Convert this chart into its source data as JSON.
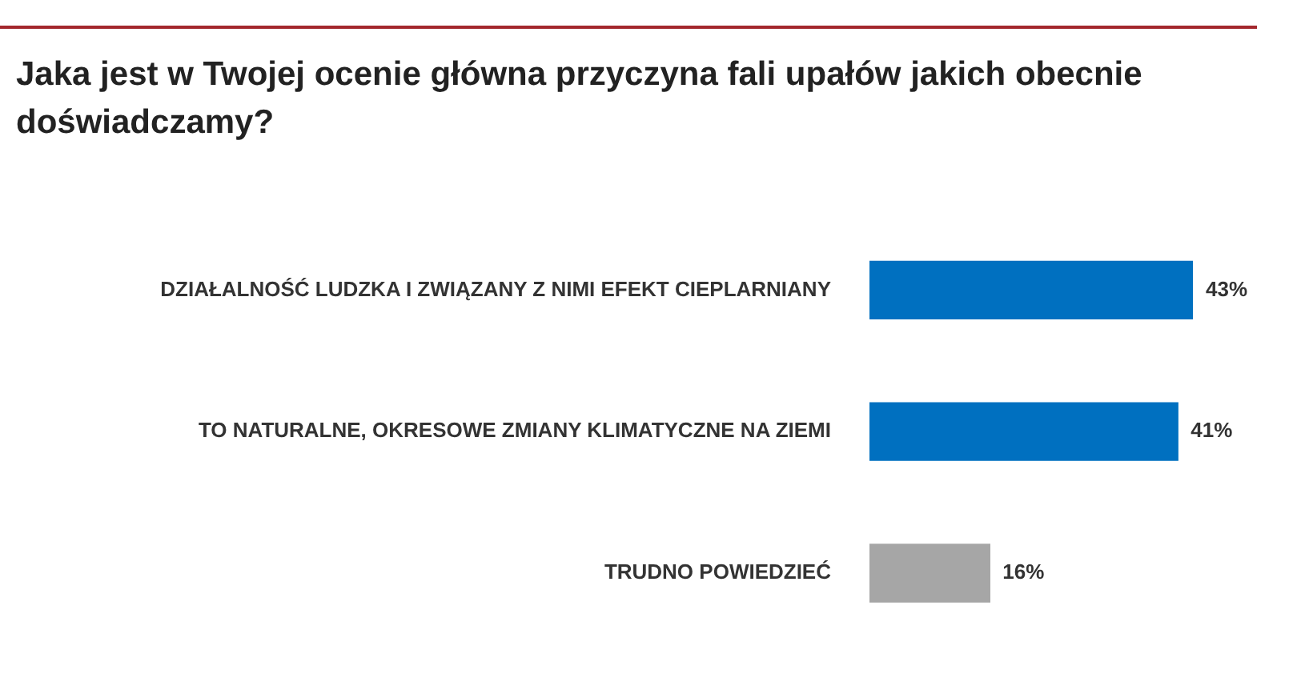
{
  "chart_data": {
    "type": "bar",
    "orientation": "horizontal",
    "title": "Jaka jest w Twojej ocenie główna przyczyna fali upałów jakich obecnie doświadczamy?",
    "categories": [
      "DZIAŁALNOŚĆ LUDZKA I ZWIĄZANY Z NIMI EFEKT CIEPLARNIANY",
      "TO NATURALNE, OKRESOWE ZMIANY KLIMATYCZNE NA ZIEMI",
      "TRUDNO POWIEDZIEĆ"
    ],
    "values": [
      43,
      41,
      16
    ],
    "colors": [
      "#0070c0",
      "#0070c0",
      "#a6a6a6"
    ],
    "value_labels": [
      "43%",
      "41%",
      "16%"
    ],
    "tick_labels": "y"
  }
}
